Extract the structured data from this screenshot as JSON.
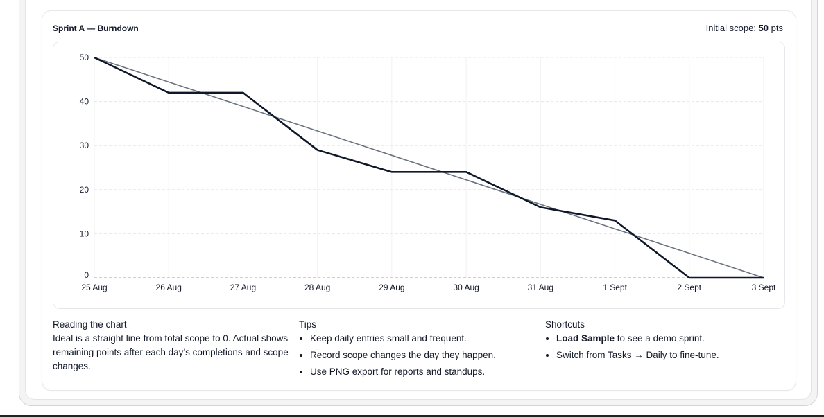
{
  "card": {
    "title": "Sprint A — Burndown",
    "scope_label": "Initial scope:",
    "scope_value": "50",
    "scope_unit": "pts"
  },
  "chart_data": {
    "type": "line",
    "categories": [
      "25 Aug",
      "26 Aug",
      "27 Aug",
      "28 Aug",
      "29 Aug",
      "30 Aug",
      "31 Aug",
      "1 Sept",
      "2 Sept",
      "3 Sept"
    ],
    "series": [
      {
        "role": "actual",
        "color": "#0f172a",
        "values": [
          50,
          42,
          42,
          29,
          24,
          24,
          16,
          13,
          0,
          0
        ]
      },
      {
        "role": "ideal",
        "color": "#6b7280",
        "values": [
          50,
          44.44,
          38.89,
          33.33,
          27.78,
          22.22,
          16.67,
          11.11,
          5.56,
          0
        ]
      }
    ],
    "yticks": [
      0,
      10,
      20,
      30,
      40,
      50
    ],
    "ylim": [
      0,
      50
    ],
    "grid": true
  },
  "notes": {
    "reading": {
      "heading": "Reading the chart",
      "text": "Ideal is a straight line from total scope to 0. Actual shows remaining points after each day’s completions and scope changes."
    },
    "tips": {
      "heading": "Tips",
      "items": [
        "Keep daily entries small and frequent.",
        "Record scope changes the day they happen.",
        "Use PNG export for reports and standups."
      ]
    },
    "shortcuts": {
      "heading": "Shortcuts",
      "item1_bold": "Load Sample",
      "item1_rest": " to see a demo sprint.",
      "item2": "Switch from Tasks → Daily to fine-tune."
    }
  }
}
